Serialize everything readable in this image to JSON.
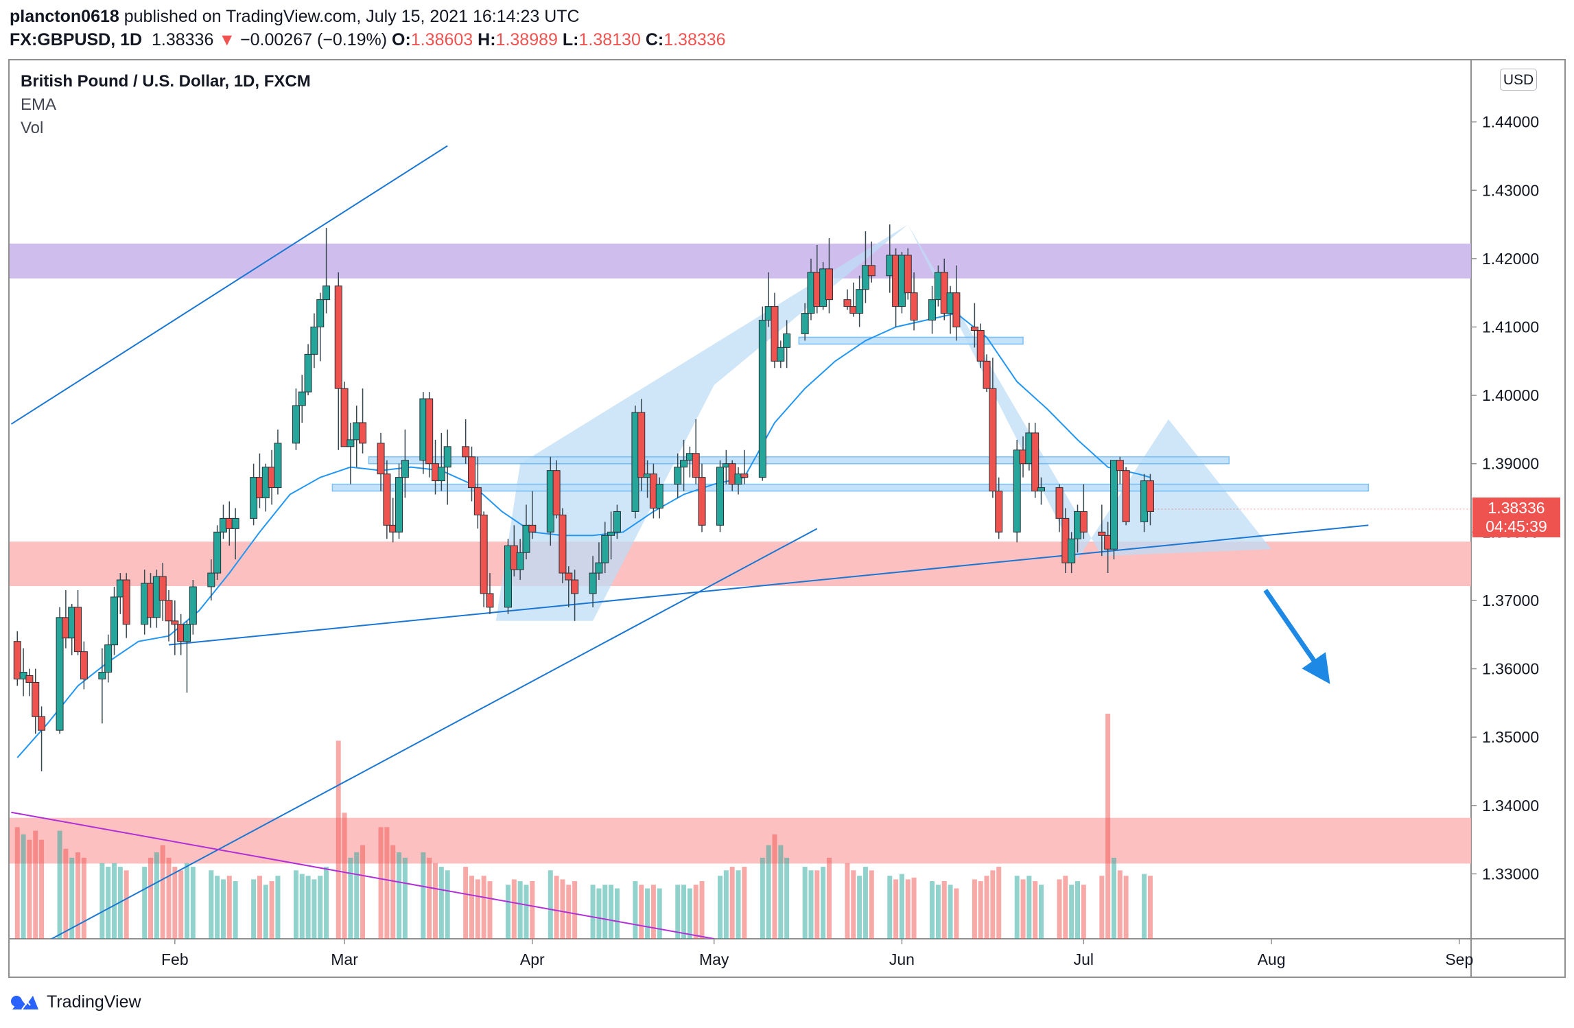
{
  "header": {
    "author": "plancton0618",
    "published_text": "published on TradingView.com, July 15, 2021 16:14:23 UTC",
    "symbol": "FX:GBPUSD, 1D",
    "last": "1.38336",
    "change": "−0.00267 (−0.19%)",
    "o_label": "O:",
    "o_val": "1.38603",
    "h_label": "H:",
    "h_val": "1.38989",
    "l_label": "L:",
    "l_val": "1.38130",
    "c_label": "C:",
    "c_val": "1.38336"
  },
  "legend": {
    "title": "British Pound / U.S. Dollar, 1D, FXCM",
    "ema": "EMA",
    "vol": "Vol"
  },
  "currency_button": "USD",
  "price_tag": {
    "price": "1.38336",
    "countdown": "04:45:39"
  },
  "footer": {
    "brand": "TradingView"
  },
  "colors": {
    "up": "#26a69a",
    "down": "#ef5350",
    "ema": "#2196f3",
    "resistance_zone": "#c7b3ea",
    "support_zone": "#fbb5b5",
    "pattern_fill": "#bfdcf6",
    "trendline": "#1976d2",
    "volume_trend": "#b02fd6"
  },
  "chart_data": {
    "type": "candlestick",
    "title": "British Pound / U.S. Dollar, 1D, FXCM",
    "xlabel": "",
    "ylabel": "USD",
    "ylim": [
      1.3205,
      1.449
    ],
    "y_ticks": [
      "1.44000",
      "1.43000",
      "1.42000",
      "1.41000",
      "1.40000",
      "1.39000",
      "1.38000",
      "1.37000",
      "1.36000",
      "1.35000",
      "1.34000",
      "1.33000"
    ],
    "x_ticks": [
      {
        "label": "Feb",
        "day": 1
      },
      {
        "label": "Mar",
        "day": 29
      },
      {
        "label": "Apr",
        "day": 60
      },
      {
        "label": "May",
        "day": 90
      },
      {
        "label": "Jun",
        "day": 121
      },
      {
        "label": "Jul",
        "day": 151
      },
      {
        "label": "Aug",
        "day": 182
      },
      {
        "label": "Sep",
        "day": 213
      }
    ],
    "x_domain_days": [
      -26,
      214
    ],
    "ohlc_columns": [
      "day_of_2021_from_Feb1",
      "open",
      "high",
      "low",
      "close",
      "volume_rel"
    ],
    "ohlc": [
      [
        -25,
        1.364,
        1.3655,
        1.3575,
        1.3585,
        0.62
      ],
      [
        -24,
        1.3585,
        1.363,
        1.356,
        1.3595,
        0.58
      ],
      [
        -23,
        1.359,
        1.36,
        1.356,
        1.358,
        0.55
      ],
      [
        -22,
        1.358,
        1.36,
        1.3505,
        1.353,
        0.6
      ],
      [
        -21,
        1.353,
        1.3545,
        1.345,
        1.351,
        0.55
      ],
      [
        -18,
        1.351,
        1.369,
        1.3505,
        1.3675,
        0.6
      ],
      [
        -17,
        1.3675,
        1.3715,
        1.363,
        1.3645,
        0.5
      ],
      [
        -16,
        1.3645,
        1.3695,
        1.362,
        1.369,
        0.45
      ],
      [
        -15,
        1.369,
        1.3715,
        1.362,
        1.3625,
        0.48
      ],
      [
        -14,
        1.3625,
        1.364,
        1.357,
        1.3585,
        0.45
      ],
      [
        -11,
        1.3585,
        1.363,
        1.352,
        1.3595,
        0.42
      ],
      [
        -10,
        1.3595,
        1.365,
        1.358,
        1.3635,
        0.4
      ],
      [
        -9,
        1.3635,
        1.372,
        1.362,
        1.3705,
        0.42
      ],
      [
        -8,
        1.3705,
        1.374,
        1.368,
        1.373,
        0.4
      ],
      [
        -7,
        1.373,
        1.374,
        1.3645,
        1.3665,
        0.38
      ],
      [
        -4,
        1.3665,
        1.3745,
        1.365,
        1.3725,
        0.4
      ],
      [
        -3,
        1.3725,
        1.374,
        1.366,
        1.3675,
        0.45
      ],
      [
        -2,
        1.3675,
        1.3745,
        1.366,
        1.3735,
        0.48
      ],
      [
        -1,
        1.3735,
        1.3755,
        1.367,
        1.37,
        0.52
      ],
      [
        0,
        1.37,
        1.3715,
        1.364,
        1.367,
        0.45
      ],
      [
        1,
        1.367,
        1.37,
        1.362,
        1.3665,
        0.4
      ],
      [
        2,
        1.3665,
        1.368,
        1.362,
        1.364,
        0.38
      ],
      [
        3,
        1.364,
        1.367,
        1.3565,
        1.3665,
        0.42
      ],
      [
        4,
        1.3665,
        1.373,
        1.365,
        1.372,
        0.4
      ],
      [
        7,
        1.372,
        1.376,
        1.37,
        1.374,
        0.38
      ],
      [
        8,
        1.374,
        1.381,
        1.373,
        1.38,
        0.35
      ],
      [
        9,
        1.38,
        1.384,
        1.379,
        1.382,
        0.33
      ],
      [
        10,
        1.382,
        1.3845,
        1.378,
        1.3805,
        0.35
      ],
      [
        11,
        1.3805,
        1.3835,
        1.376,
        1.382,
        0.32
      ],
      [
        14,
        1.382,
        1.39,
        1.381,
        1.388,
        0.33
      ],
      [
        15,
        1.388,
        1.3915,
        1.3835,
        1.385,
        0.35
      ],
      [
        16,
        1.385,
        1.39,
        1.383,
        1.3895,
        0.3
      ],
      [
        17,
        1.3895,
        1.392,
        1.384,
        1.3865,
        0.32
      ],
      [
        18,
        1.3865,
        1.395,
        1.3855,
        1.393,
        0.35
      ],
      [
        21,
        1.393,
        1.401,
        1.392,
        1.3985,
        0.38
      ],
      [
        22,
        1.3985,
        1.403,
        1.396,
        1.4005,
        0.36
      ],
      [
        23,
        1.4005,
        1.4075,
        1.4,
        1.406,
        0.35
      ],
      [
        24,
        1.406,
        1.412,
        1.404,
        1.41,
        0.33
      ],
      [
        25,
        1.41,
        1.415,
        1.405,
        1.414,
        0.35
      ],
      [
        26,
        1.414,
        1.4245,
        1.412,
        1.416,
        0.4
      ],
      [
        28,
        1.416,
        1.418,
        1.392,
        1.401,
        1.1
      ],
      [
        29,
        1.401,
        1.402,
        1.3925,
        1.3925,
        0.7
      ],
      [
        30,
        1.3925,
        1.396,
        1.387,
        1.3935,
        0.45
      ],
      [
        31,
        1.3935,
        1.3985,
        1.3895,
        1.396,
        0.48
      ],
      [
        32,
        1.396,
        1.401,
        1.3915,
        1.393,
        0.52
      ],
      [
        35,
        1.393,
        1.3945,
        1.386,
        1.3885,
        0.62
      ],
      [
        36,
        1.3885,
        1.3905,
        1.379,
        1.381,
        0.62
      ],
      [
        37,
        1.381,
        1.385,
        1.3785,
        1.38,
        0.52
      ],
      [
        38,
        1.38,
        1.39,
        1.379,
        1.388,
        0.48
      ],
      [
        39,
        1.388,
        1.395,
        1.385,
        1.3905,
        0.45
      ],
      [
        42,
        1.3905,
        1.4005,
        1.3885,
        1.3995,
        0.48
      ],
      [
        43,
        1.3995,
        1.4005,
        1.388,
        1.39,
        0.45
      ],
      [
        44,
        1.39,
        1.3935,
        1.3855,
        1.3875,
        0.42
      ],
      [
        45,
        1.3875,
        1.3945,
        1.386,
        1.3895,
        0.4
      ],
      [
        46,
        1.3895,
        1.395,
        1.384,
        1.3925,
        0.38
      ],
      [
        49,
        1.3925,
        1.3965,
        1.39,
        1.391,
        0.4
      ],
      [
        50,
        1.391,
        1.3925,
        1.3845,
        1.3865,
        0.35
      ],
      [
        51,
        1.3865,
        1.391,
        1.3805,
        1.3825,
        0.33
      ],
      [
        52,
        1.3825,
        1.383,
        1.369,
        1.371,
        0.35
      ],
      [
        53,
        1.371,
        1.374,
        1.368,
        1.369,
        0.32
      ],
      [
        56,
        1.369,
        1.379,
        1.368,
        1.378,
        0.3
      ],
      [
        57,
        1.378,
        1.381,
        1.3735,
        1.3745,
        0.33
      ],
      [
        58,
        1.3745,
        1.379,
        1.373,
        1.377,
        0.32
      ],
      [
        59,
        1.377,
        1.384,
        1.376,
        1.381,
        0.3
      ],
      [
        60,
        1.381,
        1.386,
        1.379,
        1.38,
        0.32
      ],
      [
        63,
        1.38,
        1.391,
        1.378,
        1.389,
        0.38
      ],
      [
        64,
        1.389,
        1.3905,
        1.382,
        1.3825,
        0.35
      ],
      [
        65,
        1.3825,
        1.3835,
        1.3725,
        1.374,
        0.33
      ],
      [
        66,
        1.374,
        1.375,
        1.369,
        1.373,
        0.3
      ],
      [
        67,
        1.373,
        1.3745,
        1.367,
        1.371,
        0.32
      ],
      [
        70,
        1.371,
        1.3765,
        1.369,
        1.374,
        0.3
      ],
      [
        71,
        1.374,
        1.3785,
        1.373,
        1.3755,
        0.28
      ],
      [
        72,
        1.3755,
        1.3815,
        1.374,
        1.3795,
        0.3
      ],
      [
        73,
        1.3795,
        1.383,
        1.376,
        1.38,
        0.3
      ],
      [
        74,
        1.38,
        1.384,
        1.379,
        1.383,
        0.28
      ],
      [
        77,
        1.383,
        1.3985,
        1.382,
        1.3975,
        0.32
      ],
      [
        78,
        1.3975,
        1.3995,
        1.386,
        1.388,
        0.3
      ],
      [
        79,
        1.388,
        1.3905,
        1.385,
        1.3885,
        0.28
      ],
      [
        80,
        1.3885,
        1.39,
        1.382,
        1.3835,
        0.3
      ],
      [
        81,
        1.3835,
        1.388,
        1.382,
        1.387,
        0.28
      ],
      [
        84,
        1.387,
        1.3915,
        1.385,
        1.3895,
        0.3
      ],
      [
        85,
        1.3895,
        1.3935,
        1.386,
        1.3905,
        0.3
      ],
      [
        86,
        1.3905,
        1.3925,
        1.388,
        1.3915,
        0.28
      ],
      [
        87,
        1.3915,
        1.3965,
        1.387,
        1.388,
        0.3
      ],
      [
        88,
        1.388,
        1.39,
        1.38,
        1.381,
        0.32
      ],
      [
        91,
        1.381,
        1.3905,
        1.38,
        1.3895,
        0.35
      ],
      [
        92,
        1.3895,
        1.392,
        1.387,
        1.39,
        0.38
      ],
      [
        93,
        1.39,
        1.3905,
        1.386,
        1.387,
        0.4
      ],
      [
        94,
        1.387,
        1.3895,
        1.3855,
        1.3885,
        0.38
      ],
      [
        95,
        1.3885,
        1.392,
        1.387,
        1.388,
        0.4
      ],
      [
        98,
        1.388,
        1.413,
        1.3875,
        1.411,
        0.45
      ],
      [
        99,
        1.411,
        1.418,
        1.41,
        1.413,
        0.52
      ],
      [
        100,
        1.413,
        1.415,
        1.404,
        1.405,
        0.58
      ],
      [
        101,
        1.405,
        1.408,
        1.404,
        1.407,
        0.52
      ],
      [
        102,
        1.407,
        1.411,
        1.404,
        1.409,
        0.45
      ],
      [
        105,
        1.409,
        1.4135,
        1.408,
        1.412,
        0.4
      ],
      [
        106,
        1.412,
        1.42,
        1.411,
        1.418,
        0.38
      ],
      [
        107,
        1.418,
        1.422,
        1.412,
        1.413,
        0.38
      ],
      [
        108,
        1.413,
        1.4195,
        1.4125,
        1.4185,
        0.4
      ],
      [
        109,
        1.4185,
        1.423,
        1.412,
        1.414,
        0.45
      ],
      [
        112,
        1.414,
        1.4155,
        1.4125,
        1.413,
        0.42
      ],
      [
        113,
        1.413,
        1.4165,
        1.4115,
        1.412,
        0.38
      ],
      [
        114,
        1.412,
        1.4175,
        1.41,
        1.4155,
        0.35
      ],
      [
        115,
        1.4155,
        1.424,
        1.4135,
        1.419,
        0.4
      ],
      [
        116,
        1.419,
        1.4225,
        1.4165,
        1.4175,
        0.38
      ],
      [
        119,
        1.4175,
        1.425,
        1.415,
        1.4205,
        0.35
      ],
      [
        120,
        1.4205,
        1.4215,
        1.41,
        1.413,
        0.33
      ],
      [
        121,
        1.413,
        1.421,
        1.412,
        1.4205,
        0.36
      ],
      [
        122,
        1.4205,
        1.4215,
        1.414,
        1.415,
        0.33
      ],
      [
        123,
        1.415,
        1.418,
        1.4095,
        1.411,
        0.34
      ],
      [
        126,
        1.411,
        1.416,
        1.409,
        1.414,
        0.32
      ],
      [
        127,
        1.414,
        1.419,
        1.413,
        1.418,
        0.3
      ],
      [
        128,
        1.418,
        1.42,
        1.411,
        1.412,
        0.32
      ],
      [
        129,
        1.412,
        1.416,
        1.409,
        1.415,
        0.3
      ],
      [
        130,
        1.415,
        1.419,
        1.408,
        1.41,
        0.28
      ],
      [
        133,
        1.41,
        1.4135,
        1.407,
        1.4095,
        0.33
      ],
      [
        134,
        1.4095,
        1.4105,
        1.404,
        1.405,
        0.32
      ],
      [
        135,
        1.405,
        1.406,
        1.4005,
        1.401,
        0.35
      ],
      [
        136,
        1.401,
        1.4055,
        1.385,
        1.386,
        0.38
      ],
      [
        137,
        1.386,
        1.388,
        1.379,
        1.38,
        0.4
      ],
      [
        140,
        1.38,
        1.3935,
        1.3785,
        1.392,
        0.35
      ],
      [
        141,
        1.392,
        1.394,
        1.388,
        1.39,
        0.33
      ],
      [
        142,
        1.39,
        1.396,
        1.389,
        1.3945,
        0.35
      ],
      [
        143,
        1.3945,
        1.396,
        1.385,
        1.386,
        0.32
      ],
      [
        144,
        1.386,
        1.388,
        1.384,
        1.3865,
        0.3
      ],
      [
        147,
        1.3865,
        1.387,
        1.38,
        1.382,
        0.33
      ],
      [
        148,
        1.382,
        1.3835,
        1.374,
        1.3755,
        0.35
      ],
      [
        149,
        1.3755,
        1.38,
        1.374,
        1.379,
        0.3
      ],
      [
        150,
        1.379,
        1.384,
        1.377,
        1.383,
        0.32
      ],
      [
        151,
        1.383,
        1.387,
        1.379,
        1.38,
        0.3
      ],
      [
        154,
        1.38,
        1.384,
        1.3765,
        1.3795,
        0.35
      ],
      [
        155,
        1.3795,
        1.3815,
        1.374,
        1.3775,
        1.25
      ],
      [
        156,
        1.3775,
        1.3905,
        1.376,
        1.3905,
        0.45
      ],
      [
        157,
        1.3905,
        1.391,
        1.387,
        1.389,
        0.38
      ],
      [
        158,
        1.389,
        1.3895,
        1.381,
        1.3815,
        0.35
      ],
      [
        161,
        1.3815,
        1.3885,
        1.38,
        1.3875,
        0.36
      ],
      [
        162,
        1.3875,
        1.3885,
        1.381,
        1.383,
        0.35
      ]
    ],
    "ema_line": [
      [
        -25,
        1.347
      ],
      [
        -20,
        1.352
      ],
      [
        -15,
        1.3575
      ],
      [
        -10,
        1.361
      ],
      [
        -5,
        1.364
      ],
      [
        0,
        1.3648
      ],
      [
        5,
        1.3685
      ],
      [
        10,
        1.374
      ],
      [
        15,
        1.38
      ],
      [
        20,
        1.3855
      ],
      [
        25,
        1.388
      ],
      [
        30,
        1.3895
      ],
      [
        35,
        1.389
      ],
      [
        40,
        1.3895
      ],
      [
        45,
        1.389
      ],
      [
        50,
        1.387
      ],
      [
        55,
        1.383
      ],
      [
        60,
        1.38
      ],
      [
        65,
        1.3795
      ],
      [
        70,
        1.3795
      ],
      [
        75,
        1.38
      ],
      [
        80,
        1.383
      ],
      [
        85,
        1.3855
      ],
      [
        90,
        1.387
      ],
      [
        95,
        1.388
      ],
      [
        100,
        1.396
      ],
      [
        105,
        1.401
      ],
      [
        110,
        1.405
      ],
      [
        115,
        1.408
      ],
      [
        120,
        1.41
      ],
      [
        125,
        1.411
      ],
      [
        130,
        1.412
      ],
      [
        135,
        1.4085
      ],
      [
        140,
        1.402
      ],
      [
        145,
        1.398
      ],
      [
        150,
        1.3935
      ],
      [
        155,
        1.3895
      ],
      [
        160,
        1.3885
      ],
      [
        162,
        1.388
      ]
    ],
    "zones": [
      {
        "name": "resistance",
        "from": 1.4171,
        "to": 1.4222,
        "color": "#c7b3ea"
      },
      {
        "name": "support",
        "from": 1.3721,
        "to": 1.3786,
        "color": "#fbb5b5"
      },
      {
        "name": "volume-band",
        "from": 1.3315,
        "to": 1.3382,
        "color": "#fbb5b5"
      }
    ],
    "levels": [
      {
        "day": 33,
        "day_end": 175,
        "price": 1.3905
      },
      {
        "day": 27,
        "day_end": 198,
        "price": 1.3865
      },
      {
        "day": 104,
        "day_end": 141,
        "price": 1.408
      }
    ],
    "pattern": [
      [
        54,
        1.367
      ],
      [
        70,
        1.367
      ],
      [
        90,
        1.4015
      ],
      [
        122,
        1.425
      ],
      [
        154,
        1.3765
      ],
      [
        182,
        1.3775
      ],
      [
        165,
        1.3965
      ],
      [
        150,
        1.376
      ],
      [
        122,
        1.425
      ],
      [
        58,
        1.39
      ],
      [
        54,
        1.367
      ]
    ],
    "trendlines": [
      {
        "from": [
          -26,
          1.3958
        ],
        "to": [
          46,
          1.4365
        ]
      },
      {
        "from": [
          0,
          1.3635
        ],
        "to": [
          198,
          1.381
        ]
      },
      {
        "from": [
          -21,
          1.3197
        ],
        "to": [
          107,
          1.3805
        ]
      }
    ],
    "volume_trendline": {
      "from": [
        -26,
        1.339
      ],
      "to": [
        90,
        1.3205
      ]
    },
    "arrow": {
      "from": [
        181,
        1.3715
      ],
      "to": [
        191,
        1.3585
      ]
    }
  }
}
